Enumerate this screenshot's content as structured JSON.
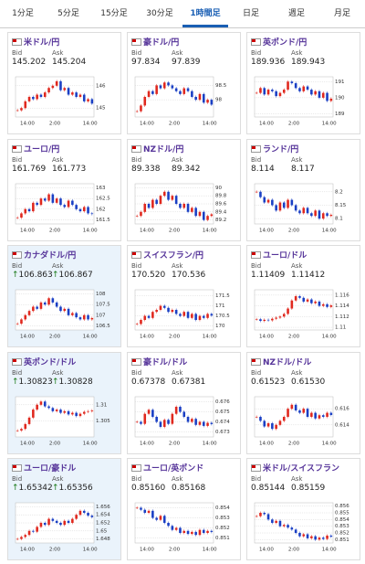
{
  "tabs": [
    "1分足",
    "5分足",
    "15分足",
    "30分足",
    "1時間足",
    "日足",
    "週足",
    "月足"
  ],
  "active_tab": 4,
  "labels": {
    "bid": "Bid",
    "ask": "Ask"
  },
  "x_labels": [
    "14:00",
    "2:00",
    "14:00"
  ],
  "cards": [
    {
      "pair": "米ドル/円",
      "bid": "145.202",
      "ask": "145.204",
      "ylim": [
        144.6,
        146.4
      ],
      "yticks": [
        145,
        146
      ],
      "closes": [
        144.9,
        145.0,
        145.3,
        145.5,
        145.4,
        145.6,
        145.5,
        145.7,
        145.9,
        146.0,
        146.2,
        145.8,
        145.9,
        145.6,
        145.7,
        145.5,
        145.6,
        145.3,
        145.4,
        145.2
      ]
    },
    {
      "pair": "豪ドル/円",
      "bid": "97.834",
      "ask": "97.839",
      "ylim": [
        97.4,
        98.8
      ],
      "yticks": [
        98,
        98.5
      ],
      "closes": [
        97.6,
        97.8,
        98.1,
        98.3,
        98.2,
        98.5,
        98.4,
        98.6,
        98.5,
        98.4,
        98.3,
        98.2,
        98.4,
        98.3,
        98.1,
        98.0,
        98.2,
        97.9,
        98.0,
        97.83
      ]
    },
    {
      "pair": "英ポンド/円",
      "bid": "189.936",
      "ask": "189.943",
      "ylim": [
        188.8,
        191.3
      ],
      "yticks": [
        189,
        190,
        191
      ],
      "closes": [
        190.3,
        190.6,
        190.2,
        190.5,
        190.4,
        190.1,
        190.3,
        190.5,
        191.0,
        190.9,
        190.6,
        190.4,
        190.7,
        190.5,
        190.2,
        190.4,
        190.0,
        190.3,
        189.8,
        189.94
      ]
    },
    {
      "pair": "ユーロ/円",
      "bid": "161.769",
      "ask": "161.773",
      "ylim": [
        161.3,
        163.2
      ],
      "yticks": [
        161.5,
        162,
        162.5,
        163
      ],
      "closes": [
        161.6,
        161.8,
        162.0,
        161.9,
        162.3,
        162.2,
        162.5,
        162.4,
        162.7,
        162.3,
        162.5,
        162.2,
        162.1,
        162.4,
        162.2,
        162.0,
        161.9,
        162.1,
        161.8,
        161.77
      ]
    },
    {
      "pair": "NZドル/円",
      "bid": "89.338",
      "ask": "89.342",
      "ylim": [
        89.1,
        90.1
      ],
      "yticks": [
        89.2,
        89.4,
        89.6,
        89.8,
        90
      ],
      "closes": [
        89.3,
        89.4,
        89.6,
        89.5,
        89.7,
        89.6,
        89.8,
        89.9,
        89.7,
        89.8,
        89.6,
        89.5,
        89.6,
        89.4,
        89.5,
        89.3,
        89.4,
        89.2,
        89.3,
        89.34
      ]
    },
    {
      "pair": "ランド/円",
      "bid": "8.114",
      "ask": "8.117",
      "ylim": [
        8.08,
        8.23
      ],
      "yticks": [
        8.1,
        8.15,
        8.2
      ],
      "closes": [
        8.2,
        8.18,
        8.16,
        8.17,
        8.15,
        8.13,
        8.16,
        8.14,
        8.17,
        8.15,
        8.13,
        8.12,
        8.14,
        8.12,
        8.11,
        8.13,
        8.1,
        8.12,
        8.11,
        8.114
      ]
    },
    {
      "pair": "カナダドル/円",
      "trend": "↑",
      "highlight": true,
      "bid": "106.863",
      "ask": "106.867",
      "ylim": [
        106.3,
        108.2
      ],
      "yticks": [
        106.5,
        107,
        107.5,
        108
      ],
      "closes": [
        106.6,
        106.8,
        107.0,
        107.2,
        107.4,
        107.3,
        107.6,
        107.5,
        107.8,
        107.6,
        107.4,
        107.2,
        107.3,
        107.0,
        107.1,
        106.9,
        106.8,
        107.0,
        106.8,
        106.863
      ]
    },
    {
      "pair": "スイスフラン/円",
      "bid": "170.520",
      "ask": "170.536",
      "ylim": [
        169.8,
        171.8
      ],
      "yticks": [
        170,
        170.5,
        171,
        171.5
      ],
      "closes": [
        170.1,
        170.3,
        170.5,
        170.4,
        170.7,
        170.8,
        171.0,
        170.9,
        170.7,
        170.8,
        170.6,
        170.5,
        170.7,
        170.4,
        170.6,
        170.3,
        170.5,
        170.4,
        170.6,
        170.52
      ]
    },
    {
      "pair": "ユーロ/ドル",
      "bid": "1.11409",
      "ask": "1.11412",
      "ylim": [
        1.1095,
        1.117
      ],
      "yticks": [
        1.11,
        1.112,
        1.114,
        1.116
      ],
      "closes": [
        1.1115,
        1.1112,
        1.1114,
        1.1113,
        1.1116,
        1.1118,
        1.112,
        1.1125,
        1.1135,
        1.115,
        1.1158,
        1.1155,
        1.1148,
        1.1152,
        1.1145,
        1.1148,
        1.114,
        1.1143,
        1.1138,
        1.11409
      ]
    },
    {
      "pair": "英ポンド/ドル",
      "trend": "↑",
      "highlight": true,
      "bid": "1.30823",
      "ask": "1.30828",
      "ylim": [
        1.3,
        1.3125
      ],
      "yticks": [
        1.305,
        1.31
      ],
      "closes": [
        1.302,
        1.3025,
        1.304,
        1.306,
        1.3085,
        1.31,
        1.311,
        1.3095,
        1.309,
        1.308,
        1.3085,
        1.3075,
        1.308,
        1.307,
        1.3075,
        1.3065,
        1.3072,
        1.3078,
        1.308,
        1.30823
      ]
    },
    {
      "pair": "豪ドル/ドル",
      "bid": "0.67378",
      "ask": "0.67381",
      "ylim": [
        0.6725,
        0.6765
      ],
      "yticks": [
        0.673,
        0.674,
        0.675,
        0.676
      ],
      "closes": [
        0.674,
        0.6738,
        0.6748,
        0.6752,
        0.6745,
        0.674,
        0.6735,
        0.6742,
        0.6738,
        0.6748,
        0.6755,
        0.675,
        0.6745,
        0.674,
        0.6743,
        0.6737,
        0.674,
        0.6736,
        0.6739,
        0.67378
      ]
    },
    {
      "pair": "NZドル/ドル",
      "bid": "0.61523",
      "ask": "0.61530",
      "ylim": [
        0.6125,
        0.6175
      ],
      "yticks": [
        0.614,
        0.616
      ],
      "closes": [
        0.615,
        0.6145,
        0.6138,
        0.6142,
        0.6135,
        0.614,
        0.6145,
        0.615,
        0.616,
        0.6165,
        0.6158,
        0.6155,
        0.616,
        0.615,
        0.6155,
        0.6148,
        0.6152,
        0.615,
        0.6155,
        0.61523
      ]
    },
    {
      "pair": "ユーロ/豪ドル",
      "trend": "↑",
      "highlight": true,
      "bid": "1.65342",
      "ask": "1.65356",
      "ylim": [
        1.647,
        1.657
      ],
      "yticks": [
        1.648,
        1.65,
        1.652,
        1.654,
        1.656
      ],
      "closes": [
        1.648,
        1.6485,
        1.649,
        1.65,
        1.6498,
        1.651,
        1.652,
        1.6515,
        1.653,
        1.6525,
        1.652,
        1.6515,
        1.6525,
        1.652,
        1.653,
        1.654,
        1.655,
        1.6545,
        1.6538,
        1.65342
      ]
    },
    {
      "pair": "ユーロ/英ポンド",
      "bid": "0.85160",
      "ask": "0.85168",
      "ylim": [
        0.8505,
        0.8545
      ],
      "yticks": [
        0.851,
        0.852,
        0.853,
        0.854
      ],
      "closes": [
        0.854,
        0.8538,
        0.8535,
        0.8537,
        0.853,
        0.8528,
        0.8532,
        0.8525,
        0.8522,
        0.8518,
        0.852,
        0.8515,
        0.8517,
        0.8514,
        0.8516,
        0.8513,
        0.8518,
        0.8515,
        0.8517,
        0.8516
      ]
    },
    {
      "pair": "米ドル/スイスフラン",
      "bid": "0.85144",
      "ask": "0.85159",
      "ylim": [
        0.8505,
        0.8565
      ],
      "yticks": [
        0.851,
        0.852,
        0.853,
        0.854,
        0.855,
        0.856
      ],
      "closes": [
        0.8545,
        0.855,
        0.8548,
        0.854,
        0.8535,
        0.8538,
        0.853,
        0.8532,
        0.8528,
        0.8525,
        0.852,
        0.8515,
        0.8518,
        0.8512,
        0.8515,
        0.851,
        0.8513,
        0.8511,
        0.8516,
        0.85144
      ]
    }
  ]
}
